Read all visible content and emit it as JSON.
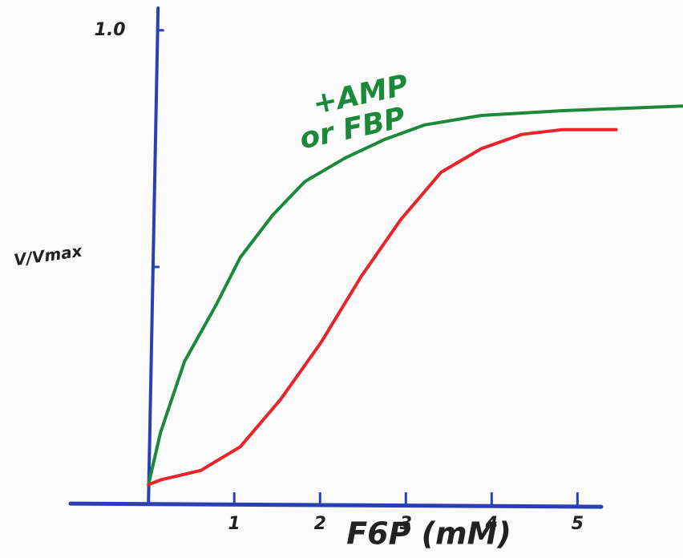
{
  "chart_data": {
    "type": "line",
    "xlabel": "F6P (mM)",
    "ylabel": "V/Vmax",
    "annotations": [
      "+AMP",
      "or FBP"
    ],
    "xlim": [
      -1.73,
      6.23
    ],
    "ylim": [
      -0.115,
      1.064
    ],
    "xticks": [
      1,
      2,
      3,
      4,
      5
    ],
    "yticks": [
      {
        "value": 0.5,
        "label": null
      },
      {
        "value": 1,
        "label": "1.0"
      }
    ],
    "axis_color": "#2b3fb5",
    "series": [
      {
        "color": "#1a8a3a",
        "x": [
          0,
          0.14,
          0.42,
          0.79,
          1.07,
          1.45,
          1.82,
          2.29,
          2.76,
          3.22,
          3.88,
          4.81,
          6.23
        ],
        "values": [
          0.04,
          0.15,
          0.3,
          0.42,
          0.52,
          0.61,
          0.68,
          0.73,
          0.77,
          0.8,
          0.82,
          0.83,
          0.84
        ]
      },
      {
        "color": "#e8232a",
        "x": [
          0,
          0.14,
          0.61,
          1.07,
          1.54,
          2.01,
          2.48,
          2.94,
          3.41,
          3.88,
          4.35,
          4.81,
          5.45
        ],
        "values": [
          0.04,
          0.05,
          0.07,
          0.12,
          0.22,
          0.34,
          0.48,
          0.6,
          0.7,
          0.75,
          0.78,
          0.79,
          0.79
        ]
      }
    ]
  }
}
